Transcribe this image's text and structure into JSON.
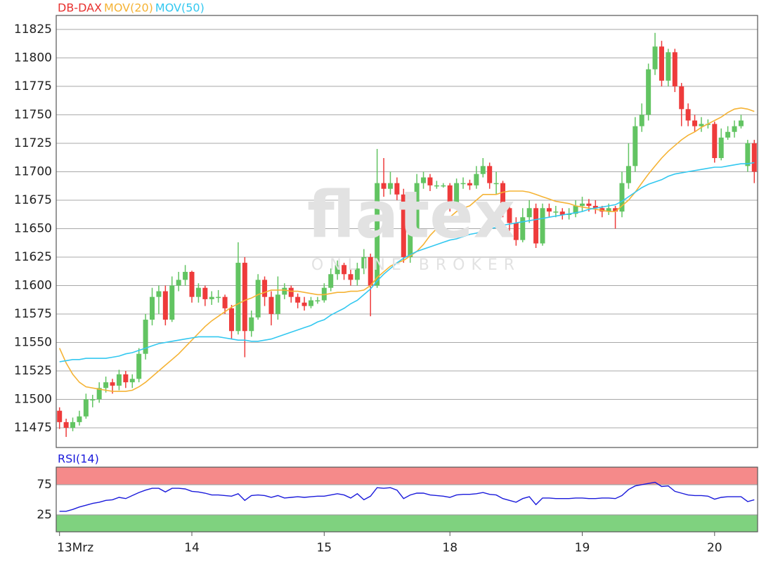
{
  "chart_data": [
    {
      "type": "candlestick",
      "name": "DB-DAX",
      "color": "#e8312f",
      "colors": {
        "up": "#62c462",
        "down": "#ee3b3b"
      },
      "watermark": {
        "logo": "flatex",
        "tagline": "ONLINE BROKER"
      },
      "categories": [
        "13Mrz",
        null,
        null,
        null,
        null,
        null,
        null,
        null,
        null,
        null,
        null,
        null,
        null,
        null,
        null,
        null,
        null,
        null,
        null,
        null,
        "14",
        null,
        null,
        null,
        null,
        null,
        null,
        null,
        null,
        null,
        null,
        null,
        null,
        null,
        null,
        null,
        null,
        null,
        null,
        null,
        "15",
        null,
        null,
        null,
        null,
        null,
        null,
        null,
        null,
        null,
        null,
        null,
        null,
        null,
        null,
        null,
        null,
        null,
        null,
        "18",
        null,
        null,
        null,
        null,
        null,
        null,
        null,
        null,
        null,
        null,
        null,
        null,
        null,
        null,
        null,
        null,
        null,
        null,
        null,
        "19",
        null,
        null,
        null,
        null,
        null,
        null,
        null,
        null,
        null,
        null,
        null,
        null,
        null,
        null,
        null,
        null,
        null,
        null,
        null,
        "20",
        null,
        null,
        null,
        null,
        null,
        null
      ],
      "open": [
        11490,
        11480,
        11475,
        11480,
        11485,
        11500,
        11500,
        11510,
        11515,
        11512,
        11522,
        11515,
        11518,
        11540,
        11570,
        11590,
        11595,
        11570,
        11600,
        11605,
        11612,
        11590,
        11598,
        11588,
        11590,
        11590,
        11580,
        11560,
        11620,
        11560,
        11572,
        11605,
        11590,
        11575,
        11592,
        11598,
        11590,
        11585,
        11582,
        11587,
        11587,
        11598,
        11610,
        11618,
        11610,
        11605,
        11615,
        11625,
        11600,
        11690,
        11685,
        11690,
        11680,
        11625,
        11650,
        11690,
        11695,
        11688,
        11688,
        11688,
        11670,
        11690,
        11690,
        11688,
        11698,
        11705,
        11690,
        11690,
        11668,
        11655,
        11640,
        11660,
        11668,
        11637,
        11668,
        11665,
        11665,
        11662,
        11663,
        11670,
        11672,
        11670,
        11668,
        11665,
        11668,
        11665,
        11690,
        11705,
        11740,
        11750,
        11790,
        11810,
        11780,
        11805,
        11775,
        11755,
        11745,
        11740,
        11742,
        11742,
        11712,
        11730,
        11735,
        11740,
        11705,
        11725
      ],
      "high": [
        11493,
        11483,
        11484,
        11490,
        11505,
        11504,
        11515,
        11520,
        11518,
        11526,
        11525,
        11522,
        11545,
        11575,
        11598,
        11600,
        11600,
        11608,
        11612,
        11618,
        11613,
        11602,
        11600,
        11595,
        11596,
        11592,
        11583,
        11638,
        11625,
        11578,
        11610,
        11608,
        11595,
        11608,
        11602,
        11600,
        11593,
        11590,
        11590,
        11590,
        11602,
        11615,
        11622,
        11620,
        11615,
        11620,
        11632,
        11628,
        11720,
        11712,
        11700,
        11695,
        11685,
        11660,
        11698,
        11700,
        11698,
        11692,
        11690,
        11690,
        11694,
        11695,
        11693,
        11705,
        11712,
        11708,
        11700,
        11692,
        11672,
        11660,
        11668,
        11675,
        11672,
        11672,
        11672,
        11670,
        11668,
        11668,
        11675,
        11678,
        11676,
        11675,
        11670,
        11672,
        11670,
        11700,
        11725,
        11748,
        11760,
        11795,
        11822,
        11815,
        11808,
        11808,
        11778,
        11760,
        11750,
        11748,
        11746,
        11744,
        11738,
        11740,
        11745,
        11750,
        11728,
        11728
      ],
      "low": [
        11474,
        11467,
        11472,
        11477,
        11483,
        11493,
        11497,
        11506,
        11505,
        11508,
        11510,
        11510,
        11515,
        11535,
        11565,
        11575,
        11565,
        11568,
        11595,
        11600,
        11585,
        11585,
        11582,
        11583,
        11585,
        11575,
        11553,
        11557,
        11537,
        11555,
        11570,
        11582,
        11565,
        11570,
        11588,
        11585,
        11580,
        11578,
        11580,
        11584,
        11585,
        11595,
        11605,
        11605,
        11600,
        11600,
        11610,
        11573,
        11598,
        11678,
        11680,
        11675,
        11620,
        11620,
        11645,
        11685,
        11683,
        11685,
        11686,
        11665,
        11668,
        11685,
        11684,
        11685,
        11695,
        11685,
        11680,
        11660,
        11648,
        11635,
        11638,
        11655,
        11633,
        11635,
        11660,
        11660,
        11658,
        11658,
        11660,
        11665,
        11665,
        11663,
        11660,
        11662,
        11650,
        11660,
        11685,
        11700,
        11735,
        11745,
        11785,
        11775,
        11775,
        11770,
        11740,
        11740,
        11735,
        11735,
        11738,
        11708,
        11710,
        11728,
        11730,
        11738,
        11700,
        11690
      ],
      "close": [
        11480,
        11475,
        11480,
        11485,
        11500,
        11500,
        11510,
        11515,
        11512,
        11522,
        11515,
        11518,
        11540,
        11570,
        11590,
        11595,
        11570,
        11600,
        11605,
        11612,
        11590,
        11598,
        11588,
        11590,
        11590,
        11580,
        11560,
        11620,
        11560,
        11572,
        11605,
        11590,
        11575,
        11592,
        11598,
        11590,
        11585,
        11582,
        11587,
        11587,
        11598,
        11610,
        11618,
        11610,
        11605,
        11615,
        11625,
        11600,
        11690,
        11685,
        11690,
        11680,
        11625,
        11650,
        11690,
        11695,
        11688,
        11688,
        11688,
        11670,
        11690,
        11690,
        11688,
        11698,
        11705,
        11690,
        11690,
        11668,
        11655,
        11640,
        11660,
        11668,
        11637,
        11668,
        11665,
        11665,
        11662,
        11663,
        11670,
        11672,
        11670,
        11668,
        11665,
        11668,
        11665,
        11690,
        11705,
        11740,
        11750,
        11790,
        11810,
        11780,
        11805,
        11775,
        11755,
        11745,
        11740,
        11742,
        11742,
        11712,
        11730,
        11735,
        11740,
        11745,
        11725,
        11700
      ],
      "series": [
        {
          "name": "MOV(20)",
          "color": "#f5b335",
          "values": [
            11545,
            11532,
            11522,
            11515,
            11511,
            11510,
            11509,
            11508,
            11507,
            11507,
            11507,
            11508,
            11511,
            11515,
            11520,
            11525,
            11530,
            11535,
            11540,
            11546,
            11552,
            11558,
            11564,
            11569,
            11573,
            11577,
            11581,
            11584,
            11587,
            11589,
            11592,
            11594,
            11596,
            11596,
            11596,
            11595,
            11595,
            11594,
            11593,
            11592,
            11592,
            11593,
            11594,
            11594,
            11595,
            11595,
            11596,
            11600,
            11607,
            11612,
            11617,
            11620,
            11622,
            11626,
            11630,
            11636,
            11644,
            11650,
            11655,
            11660,
            11665,
            11668,
            11670,
            11675,
            11680,
            11680,
            11680,
            11682,
            11683,
            11683,
            11683,
            11682,
            11680,
            11678,
            11676,
            11674,
            11673,
            11672,
            11670,
            11669,
            11668,
            11667,
            11666,
            11665,
            11665,
            11670,
            11675,
            11682,
            11690,
            11698,
            11705,
            11712,
            11718,
            11723,
            11728,
            11732,
            11735,
            11739,
            11742,
            11745,
            11748,
            11752,
            11755,
            11756,
            11755,
            11753
          ]
        },
        {
          "name": "MOV(50)",
          "color": "#33c8f0",
          "values": [
            11533,
            11534,
            11535,
            11535,
            11536,
            11536,
            11536,
            11536,
            11537,
            11538,
            11540,
            11541,
            11543,
            11545,
            11547,
            11549,
            11550,
            11551,
            11552,
            11553,
            11554,
            11555,
            11555,
            11555,
            11555,
            11554,
            11553,
            11552,
            11552,
            11551,
            11551,
            11552,
            11553,
            11555,
            11557,
            11559,
            11561,
            11563,
            11565,
            11568,
            11570,
            11574,
            11577,
            11580,
            11584,
            11587,
            11592,
            11597,
            11604,
            11610,
            11615,
            11620,
            11624,
            11627,
            11630,
            11632,
            11634,
            11636,
            11638,
            11640,
            11641,
            11643,
            11645,
            11646,
            11648,
            11650,
            11651,
            11653,
            11654,
            11655,
            11656,
            11657,
            11658,
            11659,
            11660,
            11661,
            11662,
            11663,
            11664,
            11665,
            11667,
            11668,
            11669,
            11670,
            11671,
            11674,
            11678,
            11682,
            11686,
            11689,
            11691,
            11693,
            11696,
            11698,
            11699,
            11700,
            11701,
            11702,
            11703,
            11704,
            11704,
            11705,
            11706,
            11707,
            11707,
            11708
          ]
        }
      ],
      "ylim": [
        11457.7,
        11837.3
      ],
      "yticks": [
        11475,
        11500,
        11525,
        11550,
        11575,
        11600,
        11625,
        11650,
        11675,
        11700,
        11725,
        11750,
        11775,
        11800,
        11825
      ],
      "grid": true
    },
    {
      "type": "line",
      "series": [
        {
          "name": "RSI(14)",
          "color": "#1a1adb",
          "values": [
            31,
            31,
            34,
            38,
            41,
            44,
            46,
            49,
            50,
            54,
            52,
            57,
            62,
            66,
            69,
            69,
            63,
            69,
            69,
            68,
            64,
            63,
            61,
            58,
            58,
            57,
            56,
            60,
            49,
            57,
            58,
            57,
            54,
            57,
            53,
            54,
            55,
            54,
            55,
            56,
            56,
            58,
            60,
            58,
            53,
            60,
            50,
            56,
            70,
            69,
            70,
            66,
            52,
            58,
            61,
            61,
            58,
            57,
            56,
            54,
            58,
            59,
            59,
            60,
            62,
            59,
            58,
            52,
            49,
            46,
            52,
            55,
            42,
            53,
            53,
            52,
            52,
            52,
            53,
            53,
            52,
            52,
            53,
            53,
            52,
            57,
            67,
            73,
            75,
            77,
            79,
            72,
            73,
            64,
            61,
            58,
            57,
            57,
            56,
            51,
            54,
            55,
            55,
            55,
            47,
            50
          ]
        }
      ],
      "bands": [
        {
          "from": 75,
          "to": 104,
          "color": "#f58a8a"
        },
        {
          "from": -3,
          "to": 25,
          "color": "#7fd27f"
        }
      ],
      "ylim": [
        -3,
        104
      ],
      "yticks": [
        25,
        75
      ],
      "grid": true
    }
  ]
}
